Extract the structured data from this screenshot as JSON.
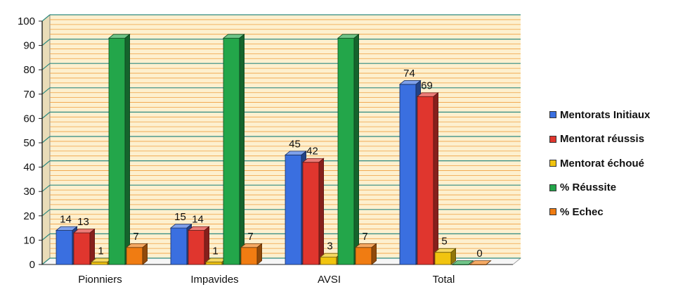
{
  "chart_data": {
    "type": "bar",
    "categories": [
      "Pionniers",
      "Impavides",
      "AVSI",
      "Total"
    ],
    "series": [
      {
        "name": "Mentorats Initiaux",
        "values": [
          14,
          15,
          45,
          74
        ],
        "color": "#3a6fe0"
      },
      {
        "name": "Mentorat réussis",
        "values": [
          13,
          14,
          42,
          69
        ],
        "color": "#e0362e"
      },
      {
        "name": "Mentorat échoué",
        "values": [
          1,
          1,
          3,
          5
        ],
        "color": "#f1c40f"
      },
      {
        "name": "% Réussite",
        "values": [
          93,
          93,
          93,
          0
        ],
        "color": "#23a64a"
      },
      {
        "name": "% Echec",
        "values": [
          7,
          7,
          7,
          0
        ],
        "color": "#f07c12"
      }
    ],
    "data_labels": [
      [
        14,
        13,
        1,
        null,
        7
      ],
      [
        15,
        14,
        1,
        null,
        7
      ],
      [
        45,
        42,
        3,
        null,
        7
      ],
      [
        74,
        69,
        5,
        null,
        0
      ]
    ],
    "yticks": [
      0,
      10,
      20,
      30,
      40,
      50,
      60,
      70,
      80,
      90,
      100
    ],
    "ylim": [
      0,
      100
    ],
    "grid": true,
    "legend_position": "right",
    "wall_color": "#fdf0cf",
    "grid_colors": [
      "#2e8a80",
      "#f0a040"
    ]
  }
}
